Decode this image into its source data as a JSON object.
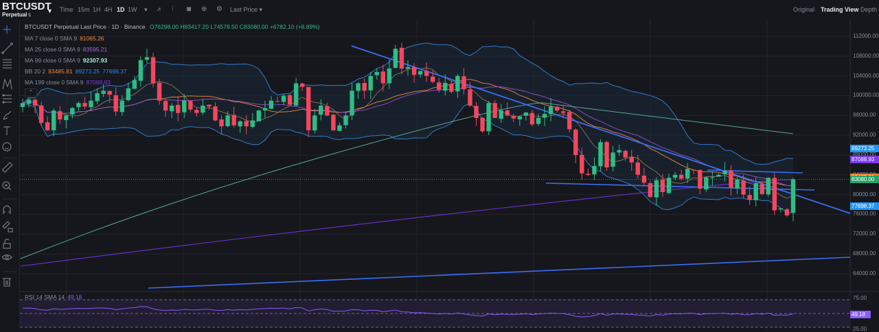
{
  "header": {
    "symbol": "BTCUSDT",
    "symbol_caret": "▼",
    "contract": "Perpetual",
    "contract_icon": "⇅",
    "timeframes": [
      {
        "label": "Time",
        "active": false
      },
      {
        "label": "15m",
        "active": false
      },
      {
        "label": "1H",
        "active": false
      },
      {
        "label": "4H",
        "active": false
      },
      {
        "label": "1D",
        "active": true
      },
      {
        "label": "1W",
        "active": false
      }
    ],
    "timeframe_more": "▾",
    "tools": [
      {
        "name": "indicators-icon",
        "glyph": "⩘"
      },
      {
        "name": "chart-type-icon",
        "glyph": "⫶"
      },
      {
        "name": "camera-icon",
        "glyph": "◙"
      },
      {
        "name": "add-icon",
        "glyph": "⊕"
      },
      {
        "name": "settings-icon",
        "glyph": "⚙"
      }
    ],
    "price_type": "Last Price ▾",
    "views": [
      {
        "label": "Original",
        "active": false
      },
      {
        "label": "Trading View",
        "active": true
      },
      {
        "label": "Depth",
        "active": false
      }
    ]
  },
  "sidebar": {
    "tools": [
      "crosshair-icon",
      "trendline-icon",
      "horizontal-lines-icon",
      "pattern-icon",
      "fib-icon",
      "brush-icon",
      "text-icon",
      "emoji-icon",
      "ruler-icon",
      "zoom-in-icon",
      "magnet-icon",
      "lock-drawing-icon",
      "unlock-icon",
      "hide-icon",
      "trash-icon"
    ]
  },
  "legend": {
    "title": "BTCUSDT Perpetual Last Price · 1D · Binance",
    "ohlc": "O76298.00  H83417.20  L74578.50  C83080.00  +6782.10 (+8.89%)",
    "ma7": {
      "label": "MA 7 close 0 SMA 9",
      "value": "81065.26",
      "color": "#f0883e"
    },
    "ma25": {
      "label": "MA 25 close 0 SMA 9",
      "value": "83595.21",
      "color": "#a855f7"
    },
    "ma99": {
      "label": "MA 99 close 0 SMA 9",
      "value": "92307.93",
      "color": "#7ee2d0"
    },
    "bb": {
      "label": "BB 20 2",
      "basis": "83485.81",
      "upper": "89273.25",
      "lower": "77698.37",
      "basis_color": "#f0883e",
      "band_color": "#3b82f6"
    },
    "ma199": {
      "label": "MA 199 close 0 SMA 9",
      "value": "87088.93",
      "color": "#7c3aed"
    },
    "collapse": "⌃"
  },
  "price_axis": {
    "ticks": [
      "112000.00",
      "108000.00",
      "104000.00",
      "100000.00",
      "96000.00",
      "92000.00",
      "88000.00",
      "84000.00",
      "80000.00",
      "76000.00",
      "72000.00",
      "68000.00",
      "64000.00"
    ],
    "tags": [
      {
        "value": "89273.25",
        "color": "#2196f3",
        "price": 89273
      },
      {
        "value": "87088.93",
        "color": "#7c3aed",
        "price": 87089
      },
      {
        "value": "83485.81",
        "color": "#f57c20",
        "price": 83486
      },
      {
        "value": "83080.00",
        "color": "#26a269",
        "price": 83080
      },
      {
        "value": "77698.37",
        "color": "#2196f3",
        "price": 77698
      }
    ]
  },
  "rsi": {
    "label": "RSI 14 SMA 14",
    "value": "49.18",
    "ticks": [
      "75.00",
      "25.00"
    ],
    "value_color": "#8b5cf6"
  },
  "colors": {
    "up": "#2ebd85",
    "down": "#f6465d",
    "trendline": "#3b6ef5",
    "bb_fill": "#1a2a3a"
  },
  "chart_data": {
    "type": "candlestick",
    "title": "BTCUSDT Perpetual Last Price · 1D · Binance",
    "ylim": [
      62000,
      114000
    ],
    "last": {
      "open": 76298.0,
      "high": 83417.2,
      "low": 74578.5,
      "close": 83080.0,
      "change": 6782.1,
      "change_pct": 8.89
    },
    "closes": [
      98500,
      99200,
      98000,
      94500,
      93000,
      97000,
      95200,
      96000,
      97500,
      98500,
      97800,
      99000,
      100500,
      101000,
      100200,
      96800,
      99000,
      101500,
      103200,
      107200,
      107800,
      102500,
      99000,
      97000,
      98000,
      96500,
      99000,
      97200,
      96500,
      98000,
      97800,
      95000,
      93800,
      96000,
      94000,
      94800,
      93800,
      95000,
      97000,
      97500,
      99000,
      98800,
      100000,
      98200,
      102500,
      101800,
      93000,
      96000,
      98000,
      96000,
      93000,
      94000,
      96000,
      101000,
      102500,
      101000,
      104000,
      104800,
      102500,
      105500,
      109500,
      105500,
      105800,
      104200,
      105000,
      104000,
      102800,
      101200,
      102600,
      100800,
      104000,
      101300,
      98000,
      95500,
      92800,
      98500,
      95500,
      97000,
      96000,
      95400,
      95800,
      96600,
      94200,
      95500,
      96300,
      97800,
      97000,
      96500,
      93200,
      88000,
      84300,
      84000,
      85800,
      90600,
      85500,
      88500,
      89000,
      87500,
      86500,
      84000,
      82400,
      79500,
      82900,
      80500,
      83400,
      84000,
      83200,
      85200,
      85000,
      81200,
      83500,
      83500,
      84000,
      84800,
      81400,
      83000,
      80000,
      79000,
      82300,
      80100,
      83400,
      76800,
      77200,
      75800,
      83080
    ],
    "ma7_last": 81065.26,
    "ma25_last": 83595.21,
    "ma99_last": 92307.93,
    "ma199_last": 87088.93,
    "bb": {
      "basis": 83485.81,
      "upper": 89273.25,
      "lower": 77698.37
    },
    "rsi_last": 49.18
  }
}
